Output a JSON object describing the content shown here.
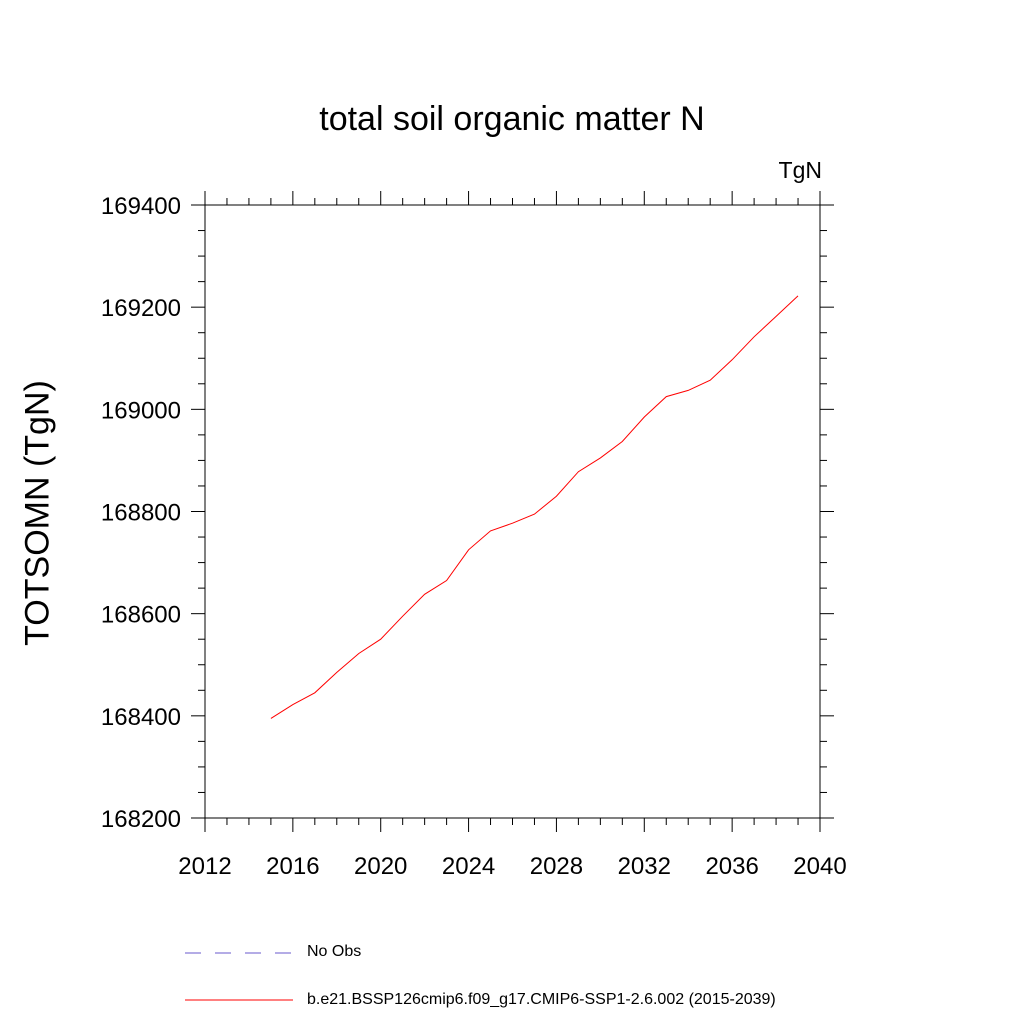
{
  "chart_data": {
    "type": "line",
    "title": "total soil organic matter N",
    "units_label": "TgN",
    "xlabel": "",
    "ylabel": "TOTSOMN  (TgN)",
    "xlim": [
      2012,
      2040
    ],
    "ylim": [
      168200,
      169400
    ],
    "xticks": [
      2012,
      2016,
      2020,
      2024,
      2028,
      2032,
      2036,
      2040
    ],
    "yticks": [
      168200,
      168400,
      168600,
      168800,
      169000,
      169200,
      169400
    ],
    "series": [
      {
        "name": "b.e21.BSSP126cmip6.f09_g17.CMIP6-SSP1-2.6.002 (2015-2039)",
        "color": "#ff0000",
        "style": "solid",
        "x": [
          2015,
          2016,
          2017,
          2018,
          2019,
          2020,
          2021,
          2022,
          2023,
          2024,
          2025,
          2026,
          2027,
          2028,
          2029,
          2030,
          2031,
          2032,
          2033,
          2034,
          2035,
          2036,
          2037,
          2038,
          2039
        ],
        "y": [
          168395,
          168422,
          168445,
          168485,
          168522,
          168550,
          168595,
          168638,
          168665,
          168725,
          168762,
          168777,
          168795,
          168830,
          168878,
          168905,
          168937,
          168985,
          169025,
          169037,
          169057,
          169097,
          169142,
          169182,
          169222
        ]
      }
    ],
    "legend": [
      {
        "label": "No Obs",
        "color": "#6a5acd",
        "style": "dashed"
      },
      {
        "label": "b.e21.BSSP126cmip6.f09_g17.CMIP6-SSP1-2.6.002 (2015-2039)",
        "color": "#ff0000",
        "style": "solid"
      }
    ]
  }
}
